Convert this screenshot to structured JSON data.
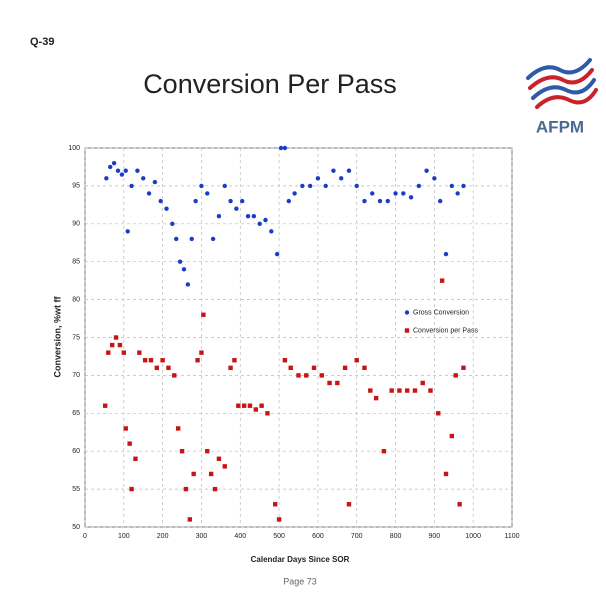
{
  "header": "Q-39",
  "logo": "AFPM",
  "footer": "Page 73",
  "chart_data": {
    "type": "scatter",
    "title": "Conversion Per Pass",
    "xlabel": "Calendar Days Since SOR",
    "ylabel": "Conversion, %wt ff",
    "xlim": [
      0,
      1100
    ],
    "xticks": [
      0,
      100,
      200,
      300,
      400,
      500,
      600,
      700,
      800,
      900,
      1000,
      1100
    ],
    "ylim": [
      50,
      100
    ],
    "yticks": [
      50,
      55,
      60,
      65,
      70,
      75,
      80,
      85,
      90,
      95,
      100
    ],
    "grid": true,
    "legend": "center right",
    "series": [
      {
        "name": "Gross Conversion",
        "color": "#1a3cc8",
        "marker": "circle",
        "x": [
          55,
          65,
          75,
          85,
          95,
          105,
          110,
          120,
          135,
          150,
          165,
          180,
          195,
          210,
          225,
          235,
          245,
          255,
          265,
          275,
          285,
          300,
          315,
          330,
          345,
          360,
          375,
          390,
          405,
          420,
          435,
          450,
          465,
          480,
          495,
          505,
          515,
          525,
          540,
          560,
          580,
          600,
          620,
          640,
          660,
          680,
          700,
          720,
          740,
          760,
          780,
          800,
          820,
          840,
          860,
          880,
          900,
          915,
          930,
          945,
          960,
          975
        ],
        "values": [
          96,
          97.5,
          98,
          97,
          96.5,
          97,
          89,
          95,
          97,
          96,
          94,
          95.5,
          93,
          92,
          90,
          88,
          85,
          84,
          82,
          88,
          93,
          95,
          94,
          88,
          91,
          95,
          93,
          92,
          93,
          91,
          91,
          90,
          90.5,
          89,
          86,
          100,
          100,
          93,
          94,
          95,
          95,
          96,
          95,
          97,
          96,
          97,
          95,
          93,
          94,
          93,
          93,
          94,
          94,
          93.5,
          95,
          97,
          96,
          93,
          86,
          95,
          94,
          95
        ]
      },
      {
        "name": "Conversion per Pass",
        "color": "#c81414",
        "marker": "square",
        "x": [
          52,
          60,
          70,
          80,
          90,
          100,
          105,
          115,
          120,
          130,
          140,
          155,
          170,
          185,
          200,
          215,
          230,
          240,
          250,
          260,
          270,
          280,
          290,
          300,
          305,
          315,
          325,
          335,
          345,
          360,
          375,
          385,
          395,
          410,
          425,
          440,
          455,
          470,
          490,
          500,
          515,
          530,
          550,
          570,
          590,
          610,
          630,
          650,
          670,
          680,
          700,
          720,
          735,
          750,
          770,
          790,
          810,
          830,
          850,
          870,
          890,
          910,
          920,
          930,
          945,
          955,
          965,
          975
        ],
        "values": [
          66,
          73,
          74,
          75,
          74,
          73,
          63,
          61,
          55,
          59,
          73,
          72,
          72,
          71,
          72,
          71,
          70,
          63,
          60,
          55,
          51,
          57,
          72,
          73,
          78,
          60,
          57,
          55,
          59,
          58,
          71,
          72,
          66,
          66,
          66,
          65.5,
          66,
          65,
          53,
          51,
          72,
          71,
          70,
          70,
          71,
          70,
          69,
          69,
          71,
          53,
          72,
          71,
          68,
          67,
          60,
          68,
          68,
          68,
          68,
          69,
          68,
          65,
          82.5,
          57,
          62,
          70,
          53,
          71
        ]
      }
    ]
  }
}
